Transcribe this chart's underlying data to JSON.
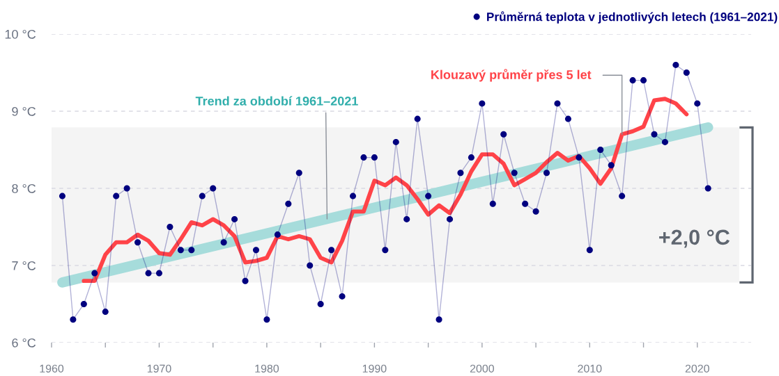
{
  "chart_data": {
    "type": "line",
    "xlim": [
      1960,
      2025
    ],
    "xticks": [
      1960,
      {
        "value": 1965,
        "label": null
      },
      1970,
      {
        "value": 1975,
        "label": null
      },
      1980,
      {
        "value": 1985,
        "label": null
      },
      1990,
      {
        "value": 1995,
        "label": null
      },
      2000,
      {
        "value": 2005,
        "label": null
      },
      2010,
      {
        "value": 2015,
        "label": null
      },
      2020
    ],
    "ylim": [
      6,
      10
    ],
    "yticks": [
      {
        "value": 6,
        "label": "6 °C"
      },
      {
        "value": 7,
        "label": "7 °C"
      },
      {
        "value": 8,
        "label": "8 °C"
      },
      {
        "value": 9,
        "label": "9 °C"
      },
      {
        "value": 10,
        "label": "10 °C"
      }
    ],
    "grid": "y",
    "legend": "top right",
    "bands": [
      {
        "axis": "y",
        "from": 6.78,
        "to": 8.79,
        "label": "+2,0 °C",
        "color": "#f4f4f4"
      }
    ],
    "series": [
      {
        "name": "Průměrná teplota v jednotlivých letech (1961–2021)",
        "color": "#00007f",
        "marker": "circle",
        "x": [
          1961,
          1962,
          1963,
          1964,
          1965,
          1966,
          1967,
          1968,
          1969,
          1970,
          1971,
          1972,
          1973,
          1974,
          1975,
          1976,
          1977,
          1978,
          1979,
          1980,
          1981,
          1982,
          1983,
          1984,
          1985,
          1986,
          1987,
          1988,
          1989,
          1990,
          1991,
          1992,
          1993,
          1994,
          1995,
          1996,
          1997,
          1998,
          1999,
          2000,
          2001,
          2002,
          2003,
          2004,
          2005,
          2006,
          2007,
          2008,
          2009,
          2010,
          2011,
          2012,
          2013,
          2014,
          2015,
          2016,
          2017,
          2018,
          2019,
          2020,
          2021
        ],
        "values": [
          7.9,
          6.3,
          6.5,
          6.9,
          6.4,
          7.9,
          8.0,
          7.3,
          6.9,
          6.9,
          7.5,
          7.2,
          7.2,
          7.9,
          8.0,
          7.3,
          7.6,
          6.8,
          7.2,
          6.3,
          7.4,
          7.8,
          8.2,
          7.0,
          6.5,
          7.2,
          6.6,
          7.9,
          8.4,
          8.4,
          7.2,
          8.6,
          7.6,
          8.9,
          7.9,
          6.3,
          7.6,
          8.2,
          8.4,
          9.1,
          7.8,
          8.7,
          8.2,
          7.8,
          7.7,
          8.2,
          9.1,
          8.9,
          8.4,
          7.2,
          8.5,
          8.3,
          7.9,
          9.4,
          9.4,
          8.7,
          8.6,
          9.6,
          9.5,
          9.1,
          8.0
        ]
      },
      {
        "name": "Klouzavý průměr přes 5 let",
        "color": "#ff4348",
        "x": [
          1963,
          1964,
          1965,
          1966,
          1967,
          1968,
          1969,
          1970,
          1971,
          1972,
          1973,
          1974,
          1975,
          1976,
          1977,
          1978,
          1979,
          1980,
          1981,
          1982,
          1983,
          1984,
          1985,
          1986,
          1987,
          1988,
          1989,
          1990,
          1991,
          1992,
          1993,
          1994,
          1995,
          1996,
          1997,
          1998,
          1999,
          2000,
          2001,
          2002,
          2003,
          2004,
          2005,
          2006,
          2007,
          2008,
          2009,
          2010,
          2011,
          2012,
          2013,
          2014,
          2015,
          2016,
          2017,
          2018,
          2019
        ],
        "values": [
          6.8,
          6.8,
          7.14,
          7.3,
          7.3,
          7.4,
          7.32,
          7.16,
          7.14,
          7.34,
          7.56,
          7.52,
          7.6,
          7.52,
          7.38,
          7.04,
          7.06,
          7.1,
          7.38,
          7.34,
          7.38,
          7.34,
          7.1,
          7.04,
          7.32,
          7.7,
          7.7,
          8.1,
          8.04,
          8.14,
          8.04,
          7.86,
          7.66,
          7.78,
          7.68,
          7.92,
          8.22,
          8.44,
          8.44,
          8.32,
          8.04,
          8.12,
          8.2,
          8.34,
          8.46,
          8.36,
          8.42,
          8.26,
          8.06,
          8.26,
          8.7,
          8.74,
          8.8,
          9.14,
          9.16,
          9.1,
          8.96
        ]
      },
      {
        "name": "Trend za období 1961–2021",
        "color": "#a6dcdb",
        "x": [
          1961,
          2021
        ],
        "values": [
          6.78,
          8.79
        ]
      }
    ]
  }
}
